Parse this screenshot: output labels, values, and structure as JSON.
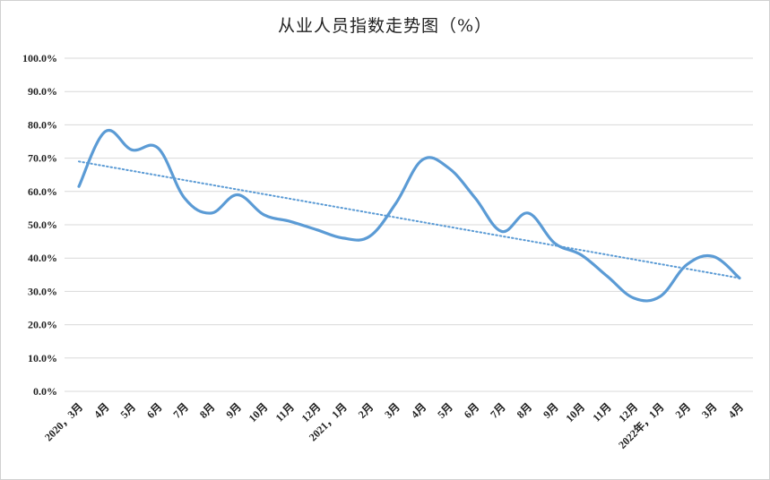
{
  "chart_data": {
    "type": "line",
    "title": "从业人员指数走势图（%）",
    "xlabel": "",
    "ylabel": "",
    "ylim": [
      0,
      100
    ],
    "yticks": [
      "0.0%",
      "10.0%",
      "20.0%",
      "30.0%",
      "40.0%",
      "50.0%",
      "60.0%",
      "70.0%",
      "80.0%",
      "90.0%",
      "100.0%"
    ],
    "categories": [
      "2020，3月",
      "4月",
      "5月",
      "6月",
      "7月",
      "8月",
      "9月",
      "10月",
      "11月",
      "12月",
      "2021，1月",
      "2月",
      "3月",
      "4月",
      "5月",
      "6月",
      "7月",
      "8月",
      "9月",
      "10月",
      "11月",
      "12月",
      "2022年，1月",
      "2月",
      "3月",
      "4月"
    ],
    "series": [
      {
        "values": [
          61.5,
          78.0,
          72.5,
          73.0,
          58.0,
          53.5,
          59.0,
          53.0,
          51.0,
          48.5,
          46.0,
          46.5,
          56.5,
          69.5,
          67.0,
          58.0,
          48.0,
          53.5,
          44.5,
          41.0,
          34.5,
          28.0,
          28.5,
          38.0,
          40.5,
          34.0
        ]
      }
    ],
    "trendline": {
      "start": 69.0,
      "end": 34.0,
      "style": "dotted"
    },
    "grid": true,
    "legend": "none",
    "colors": {
      "line": "#5b9bd5",
      "trend": "#5b9bd5",
      "grid": "#d9d9d9"
    }
  }
}
